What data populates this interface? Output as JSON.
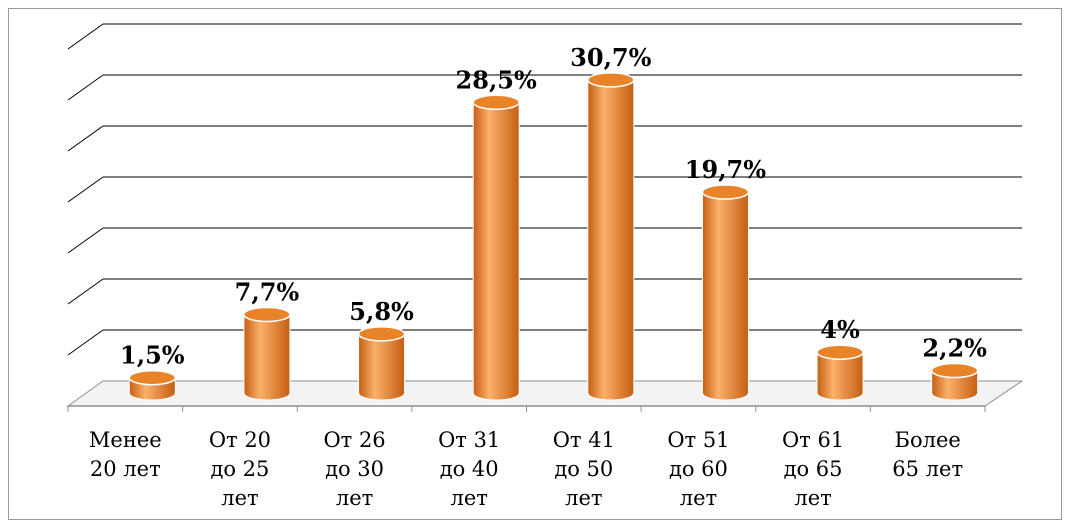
{
  "chart_data": {
    "type": "bar",
    "style": "3d-cylinder",
    "categories": [
      [
        "Менее",
        "20 лет"
      ],
      [
        "От 20",
        "до 25",
        "лет"
      ],
      [
        "От 26",
        "до 30",
        "лет"
      ],
      [
        "От 31",
        "до 40",
        "лет"
      ],
      [
        "От 41",
        "до 50",
        "лет"
      ],
      [
        "От 51",
        "до 60",
        "лет"
      ],
      [
        "От 61",
        "до 65",
        "лет"
      ],
      [
        "Более",
        "65 лет"
      ]
    ],
    "values": [
      1.5,
      7.7,
      5.8,
      28.5,
      30.7,
      19.7,
      4,
      2.2
    ],
    "data_labels": [
      "1,5%",
      "7,7%",
      "5,8%",
      "28,5%",
      "30,7%",
      "19,7%",
      "4%",
      "2,2%"
    ],
    "ylim": [
      0,
      35
    ],
    "y_tick_step": 5,
    "y_tick_labels_shown": false,
    "grid": true,
    "legend": "none",
    "colors": {
      "bar_fill": "#F28A30",
      "bar_dark": "#C45E12",
      "bar_light": "#FBB06A",
      "bar_top": "#E88328",
      "grid": "#000000",
      "floor": "#8f8f8f"
    }
  }
}
